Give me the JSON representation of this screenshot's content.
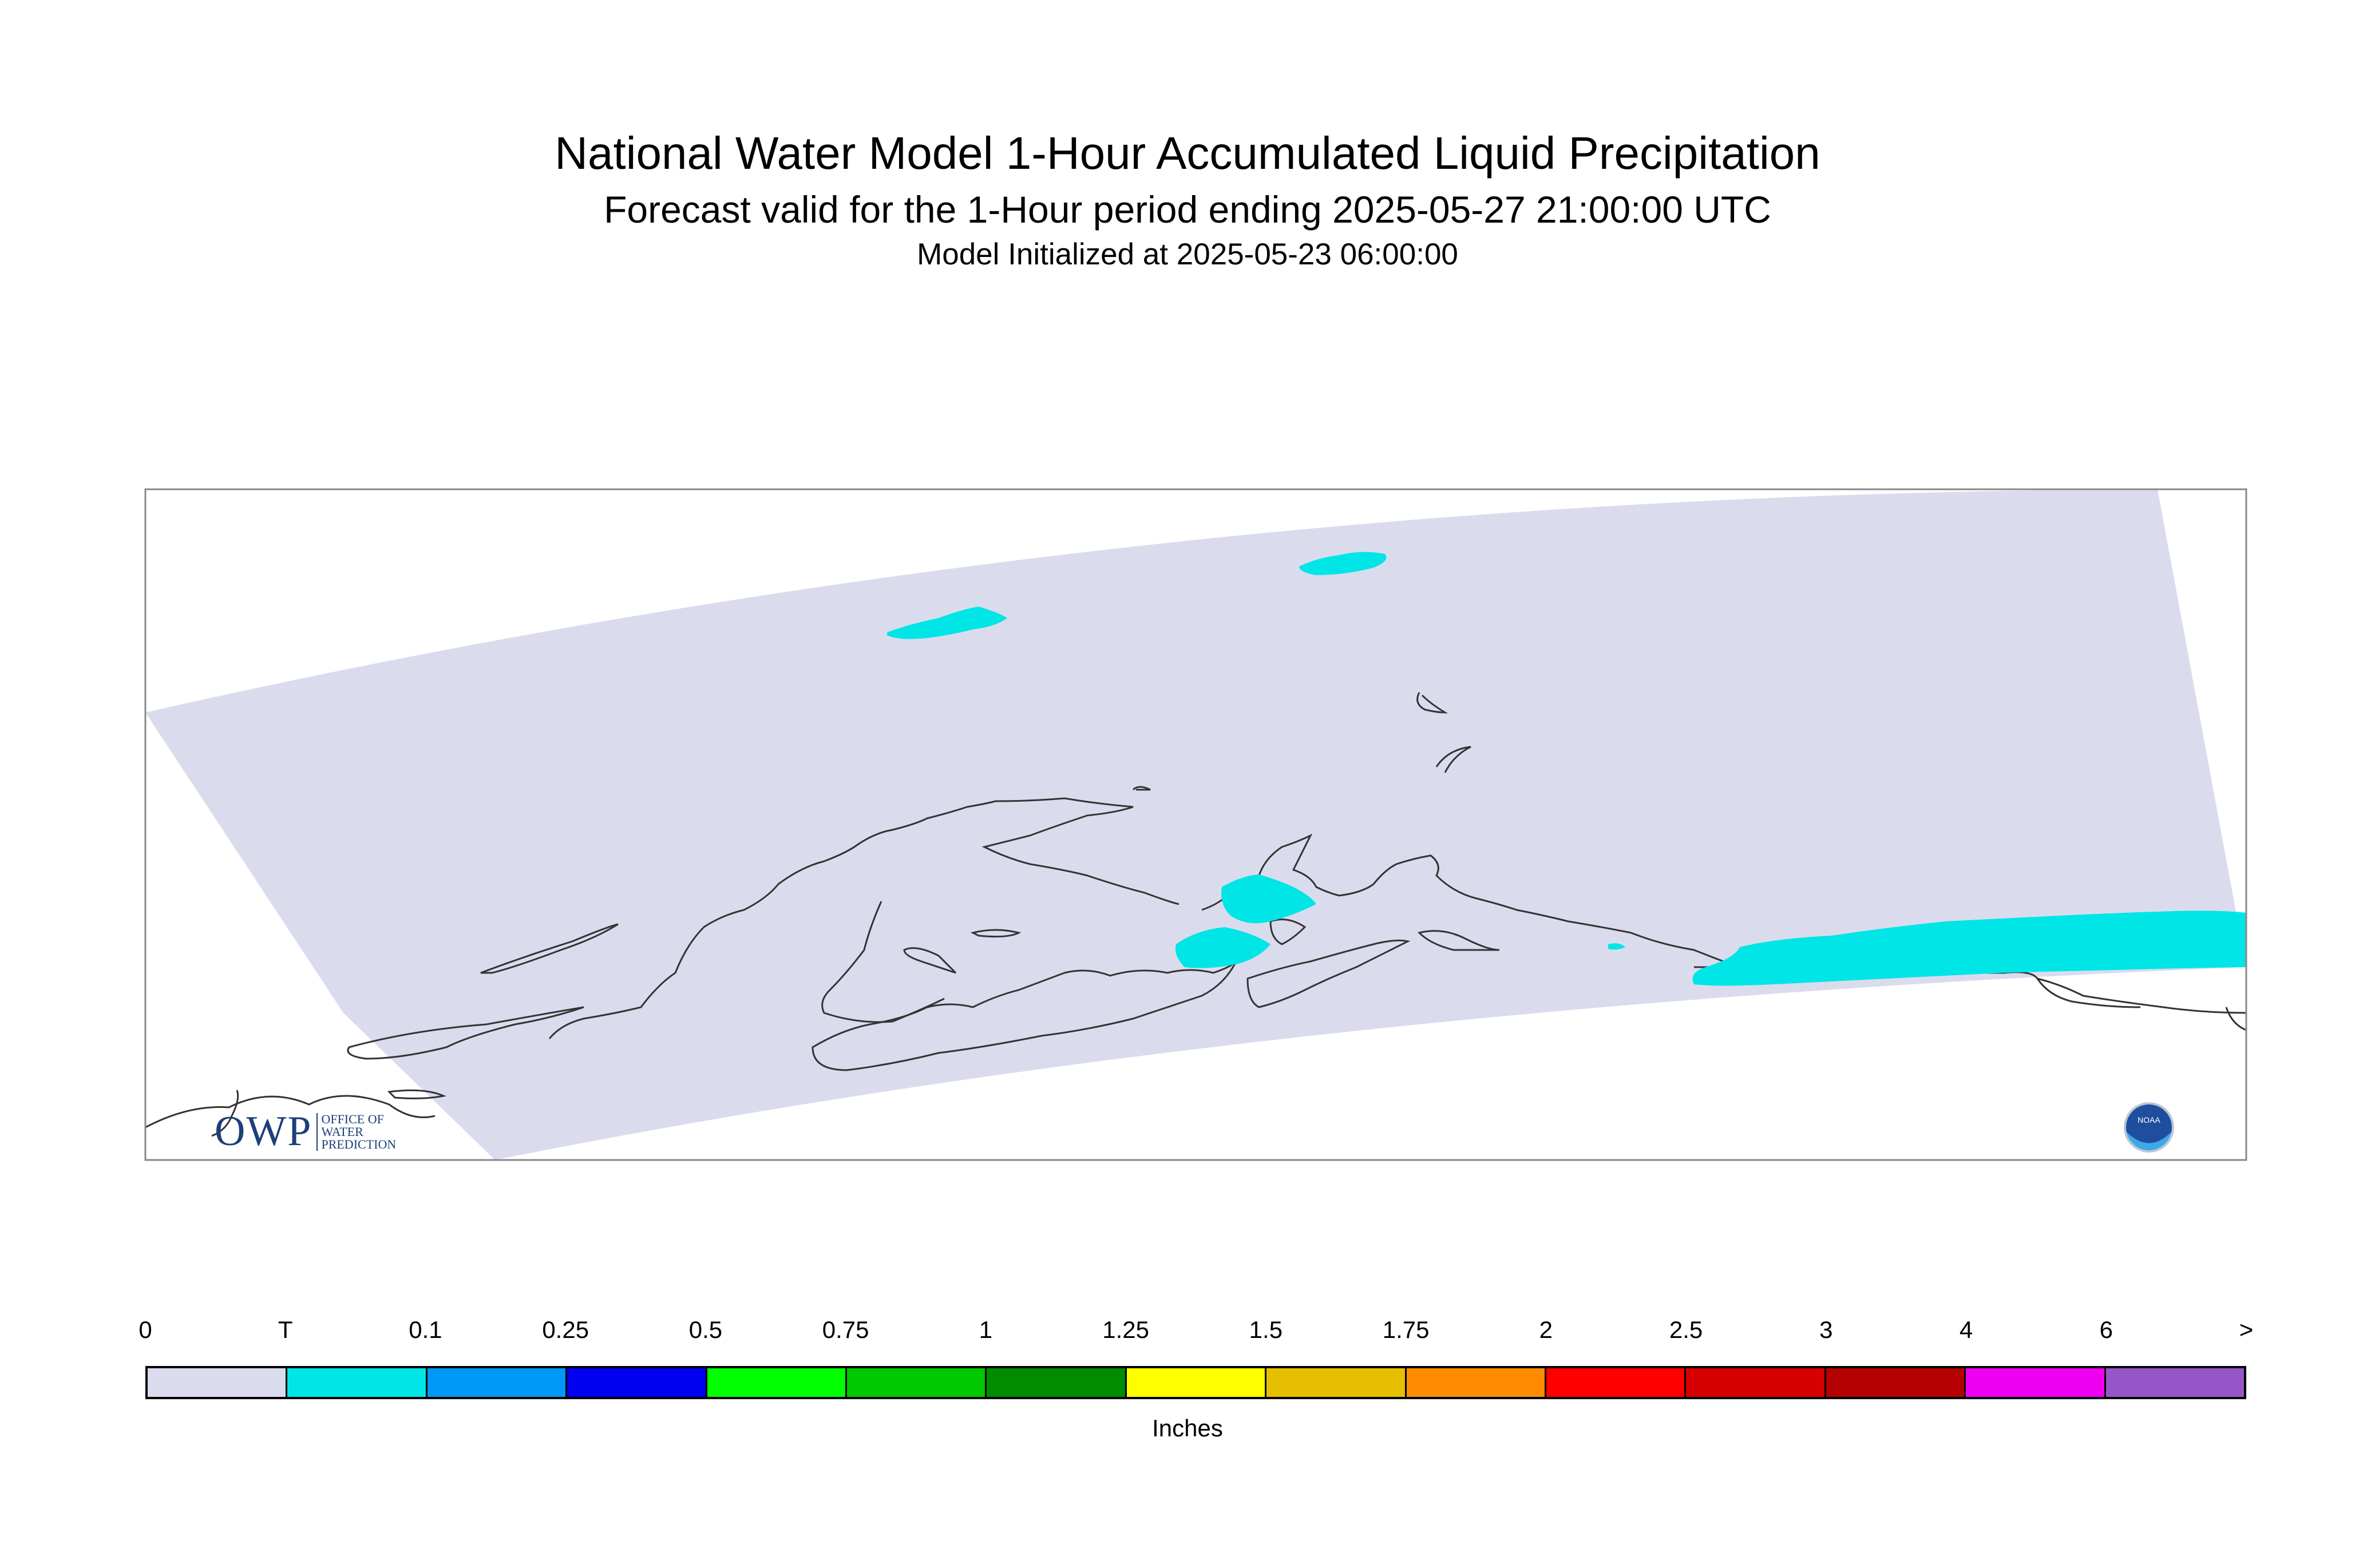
{
  "title": "National Water Model 1-Hour Accumulated Liquid Precipitation",
  "subtitle": "Forecast valid for the 1-Hour period ending 2025-05-27 21:00:00 UTC",
  "init_line": "Model Initialized at 2025-05-23 06:00:00",
  "map": {
    "region": "Alaska",
    "domain_fill_color": "#dadcee",
    "precip_fill_color": "#00e6e6",
    "coastline_color": "#333333"
  },
  "legend": {
    "ticks": [
      "0",
      "T",
      "0.1",
      "0.25",
      "0.5",
      "0.75",
      "1",
      "1.25",
      "1.5",
      "1.75",
      "2",
      "2.5",
      "3",
      "4",
      "6",
      ">"
    ],
    "colors": [
      "#dadcee",
      "#00e6e6",
      "#0099f7",
      "#0000f0",
      "#00ff00",
      "#00c800",
      "#008c00",
      "#ffff00",
      "#e6c000",
      "#ff8c00",
      "#ff0000",
      "#d70000",
      "#b40000",
      "#f000f0",
      "#9656c8"
    ],
    "unit": "Inches"
  },
  "logos": {
    "owp": {
      "letters": "OWP",
      "lines": [
        "OFFICE OF",
        "WATER",
        "PREDICTION"
      ]
    },
    "noaa": {
      "text": "NOAA"
    }
  }
}
